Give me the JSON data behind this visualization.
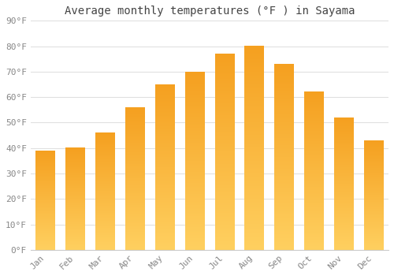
{
  "title": "Average monthly temperatures (°F ) in Sayama",
  "months": [
    "Jan",
    "Feb",
    "Mar",
    "Apr",
    "May",
    "Jun",
    "Jul",
    "Aug",
    "Sep",
    "Oct",
    "Nov",
    "Dec"
  ],
  "values": [
    39,
    40,
    46,
    56,
    65,
    70,
    77,
    80,
    73,
    62,
    52,
    43
  ],
  "ylim": [
    0,
    90
  ],
  "yticks": [
    0,
    10,
    20,
    30,
    40,
    50,
    60,
    70,
    80,
    90
  ],
  "ytick_labels": [
    "0°F",
    "10°F",
    "20°F",
    "30°F",
    "40°F",
    "50°F",
    "60°F",
    "70°F",
    "80°F",
    "90°F"
  ],
  "background_color": "#ffffff",
  "grid_color": "#e0e0e0",
  "bar_color_light": "#FFD060",
  "bar_color_dark": "#F5A020",
  "title_fontsize": 10,
  "tick_fontsize": 8,
  "bar_width": 0.65,
  "tick_color": "#888888",
  "title_color": "#444444"
}
